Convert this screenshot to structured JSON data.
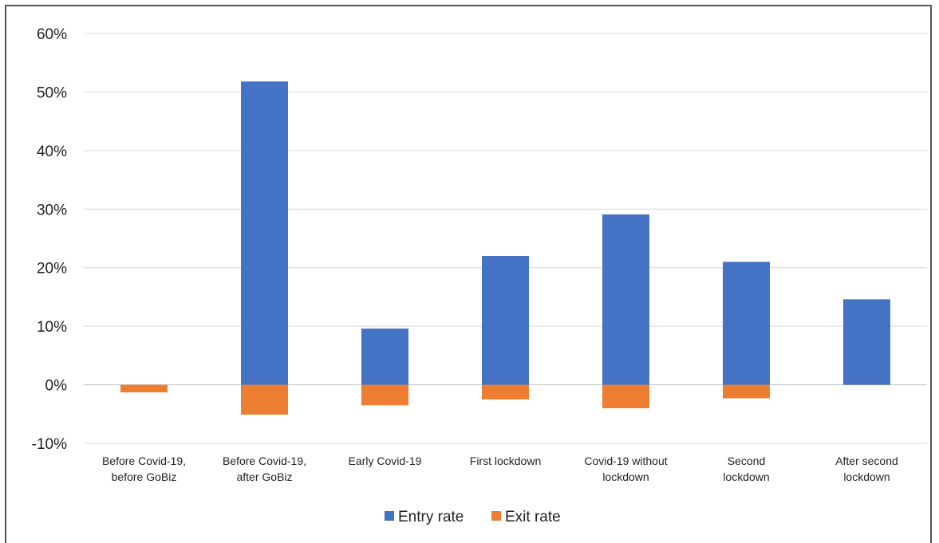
{
  "chart_data": {
    "type": "bar",
    "title": "",
    "xlabel": "",
    "ylabel": "",
    "ylim": [
      -10,
      60
    ],
    "yticks": [
      {
        "value": 60,
        "label": "60%"
      },
      {
        "value": 50,
        "label": "50%"
      },
      {
        "value": 40,
        "label": "40%"
      },
      {
        "value": 30,
        "label": "30%"
      },
      {
        "value": 20,
        "label": "20%"
      },
      {
        "value": 10,
        "label": "10%"
      },
      {
        "value": 0,
        "label": "0%"
      },
      {
        "value": -10,
        "label": "-10%"
      }
    ],
    "grid": true,
    "legend_position": "bottom",
    "categories": [
      [
        "Before Covid-19,",
        "before GoBiz"
      ],
      [
        "Before Covid-19,",
        "after GoBiz"
      ],
      [
        "Early Covid-19"
      ],
      [
        "First lockdown"
      ],
      [
        "Covid-19 without",
        "lockdown"
      ],
      [
        "Second",
        "lockdown"
      ],
      [
        "After second",
        "lockdown"
      ]
    ],
    "series": [
      {
        "name": "Entry rate",
        "color": "#4472C4",
        "values": [
          0,
          51.8,
          9.6,
          22.0,
          29.1,
          21.0,
          14.6
        ]
      },
      {
        "name": "Exit rate",
        "color": "#ED7D31",
        "values": [
          -1.3,
          -5.1,
          -3.5,
          -2.5,
          -4.0,
          -2.3,
          0
        ]
      }
    ]
  }
}
